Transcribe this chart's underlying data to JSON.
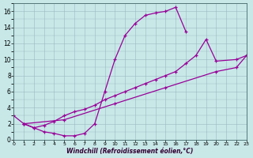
{
  "xlabel": "Windchill (Refroidissement éolien,°C)",
  "bg_color": "#c8e8e8",
  "line_color": "#990099",
  "grid_color": "#9ab8c0",
  "xlim": [
    0,
    23
  ],
  "ylim": [
    0,
    17
  ],
  "curve1_x": [
    0,
    1,
    2,
    3,
    4,
    5,
    6,
    7,
    8,
    9,
    10,
    11,
    12,
    13,
    14,
    15,
    16,
    17
  ],
  "curve1_y": [
    3.0,
    2.0,
    1.5,
    1.0,
    0.8,
    0.5,
    0.5,
    0.8,
    2.0,
    6.0,
    10.0,
    13.0,
    14.5,
    15.5,
    15.8,
    16.0,
    16.5,
    13.5
  ],
  "curve2_x": [
    1,
    2,
    3,
    4,
    5,
    6,
    7,
    8,
    9,
    10,
    11,
    12,
    13,
    14,
    15,
    16,
    17,
    18,
    19,
    20,
    22,
    23
  ],
  "curve2_y": [
    2.0,
    1.5,
    1.8,
    2.3,
    3.0,
    3.5,
    3.8,
    4.3,
    5.0,
    5.5,
    6.0,
    6.5,
    7.0,
    7.5,
    8.0,
    8.5,
    9.5,
    10.5,
    12.5,
    9.8,
    10.0,
    10.5
  ],
  "curve3_x": [
    1,
    5,
    10,
    15,
    20,
    22,
    23
  ],
  "curve3_y": [
    2.0,
    2.5,
    4.5,
    6.5,
    8.5,
    9.0,
    10.5
  ]
}
